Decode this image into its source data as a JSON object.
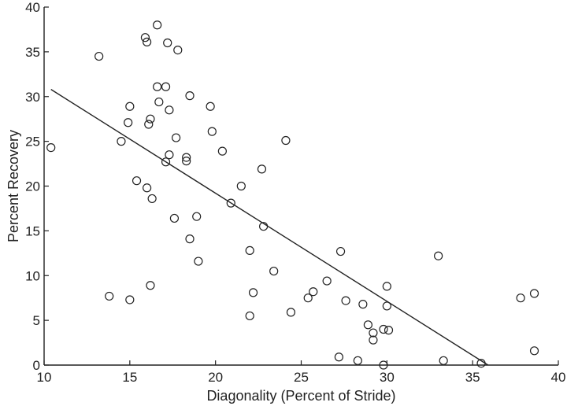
{
  "chart_data": {
    "type": "scatter",
    "title": "",
    "xlabel": "Diagonality (Percent of Stride)",
    "ylabel": "Percent Recovery",
    "xlim": [
      10,
      40
    ],
    "ylim": [
      0,
      40
    ],
    "xticks": [
      10,
      15,
      20,
      25,
      30,
      35,
      40
    ],
    "yticks": [
      0,
      5,
      10,
      15,
      20,
      25,
      30,
      35,
      40
    ],
    "grid": false,
    "series": [
      {
        "marker": "open-circle",
        "color": "#222222",
        "points": [
          [
            10.4,
            24.3
          ],
          [
            13.2,
            34.5
          ],
          [
            13.8,
            7.7
          ],
          [
            14.5,
            25.0
          ],
          [
            15.0,
            28.9
          ],
          [
            14.9,
            27.1
          ],
          [
            15.0,
            7.3
          ],
          [
            15.4,
            20.6
          ],
          [
            15.9,
            36.6
          ],
          [
            16.0,
            36.1
          ],
          [
            16.1,
            26.9
          ],
          [
            16.2,
            27.5
          ],
          [
            16.0,
            19.8
          ],
          [
            16.2,
            8.9
          ],
          [
            16.3,
            18.6
          ],
          [
            16.6,
            38.0
          ],
          [
            16.6,
            31.1
          ],
          [
            16.7,
            29.4
          ],
          [
            17.1,
            31.1
          ],
          [
            17.2,
            36.0
          ],
          [
            17.3,
            28.5
          ],
          [
            17.3,
            23.5
          ],
          [
            17.1,
            22.7
          ],
          [
            17.6,
            16.4
          ],
          [
            17.8,
            35.2
          ],
          [
            17.7,
            25.4
          ],
          [
            18.3,
            23.2
          ],
          [
            18.3,
            22.8
          ],
          [
            18.5,
            30.1
          ],
          [
            18.5,
            14.1
          ],
          [
            18.9,
            16.6
          ],
          [
            19.0,
            11.6
          ],
          [
            19.7,
            28.9
          ],
          [
            19.8,
            26.1
          ],
          [
            20.4,
            23.9
          ],
          [
            20.9,
            18.1
          ],
          [
            21.5,
            20.0
          ],
          [
            22.0,
            12.8
          ],
          [
            22.0,
            5.5
          ],
          [
            22.2,
            8.1
          ],
          [
            22.7,
            21.9
          ],
          [
            22.8,
            15.5
          ],
          [
            23.4,
            10.5
          ],
          [
            24.1,
            25.1
          ],
          [
            24.4,
            5.9
          ],
          [
            25.4,
            7.5
          ],
          [
            25.7,
            8.2
          ],
          [
            26.5,
            9.4
          ],
          [
            27.2,
            0.9
          ],
          [
            27.3,
            12.7
          ],
          [
            27.6,
            7.2
          ],
          [
            28.3,
            0.5
          ],
          [
            28.6,
            6.8
          ],
          [
            28.9,
            4.5
          ],
          [
            29.2,
            3.6
          ],
          [
            29.2,
            2.8
          ],
          [
            29.8,
            4.0
          ],
          [
            29.8,
            0.0
          ],
          [
            30.0,
            8.8
          ],
          [
            30.0,
            6.6
          ],
          [
            30.1,
            3.9
          ],
          [
            33.0,
            12.2
          ],
          [
            33.3,
            0.5
          ],
          [
            35.5,
            0.2
          ],
          [
            37.8,
            7.5
          ],
          [
            38.6,
            8.0
          ],
          [
            38.6,
            1.6
          ]
        ]
      }
    ],
    "trendline": {
      "type": "line",
      "color": "#222222",
      "points": [
        [
          10.4,
          30.8
        ],
        [
          35.9,
          0.0
        ]
      ]
    }
  }
}
